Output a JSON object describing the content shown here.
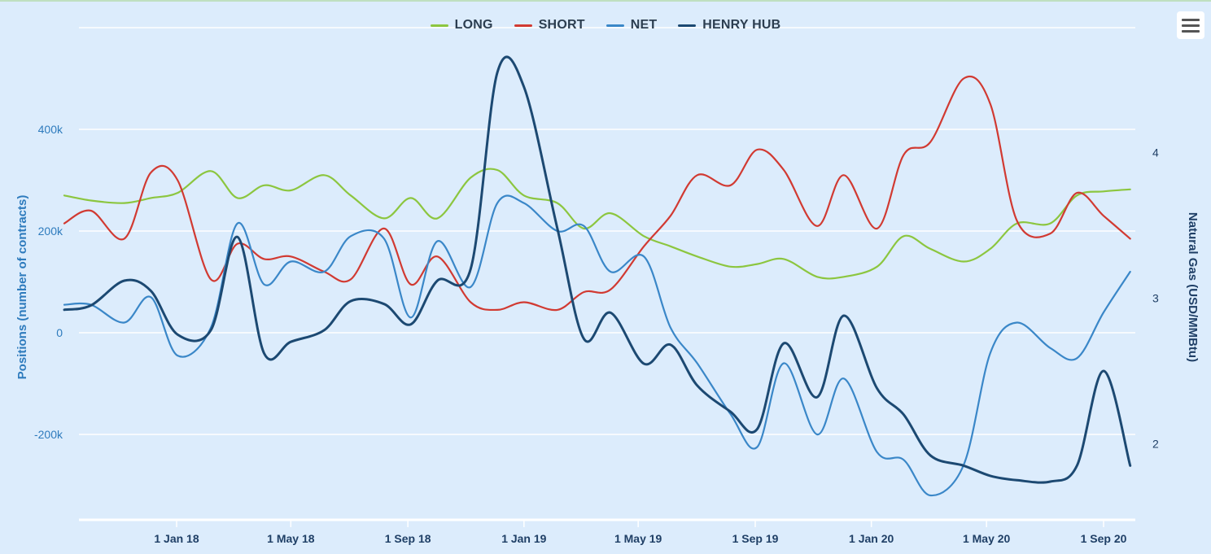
{
  "menu": {
    "icon": "hamburger-menu-icon"
  },
  "chart_data": {
    "type": "line",
    "title": "",
    "x": [
      "2017-09-05",
      "2017-10-03",
      "2017-11-07",
      "2017-12-05",
      "2018-01-02",
      "2018-02-06",
      "2018-03-06",
      "2018-04-03",
      "2018-05-01",
      "2018-06-05",
      "2018-07-03",
      "2018-08-07",
      "2018-09-04",
      "2018-10-02",
      "2018-11-06",
      "2018-12-04",
      "2019-01-01",
      "2019-02-05",
      "2019-03-05",
      "2019-04-02",
      "2019-05-07",
      "2019-06-04",
      "2019-07-02",
      "2019-08-06",
      "2019-09-03",
      "2019-10-01",
      "2019-11-05",
      "2019-12-03",
      "2020-01-07",
      "2020-02-04",
      "2020-03-03",
      "2020-04-07",
      "2020-05-05",
      "2020-06-02",
      "2020-07-07",
      "2020-08-04",
      "2020-09-01",
      "2020-09-29"
    ],
    "series": [
      {
        "name": "LONG",
        "axis": "left",
        "color": "#8cc63f",
        "values": [
          270000,
          260000,
          255000,
          265000,
          275000,
          318000,
          265000,
          290000,
          280000,
          310000,
          270000,
          225000,
          265000,
          225000,
          305000,
          320000,
          270000,
          255000,
          205000,
          235000,
          190000,
          170000,
          150000,
          130000,
          135000,
          145000,
          110000,
          110000,
          130000,
          190000,
          165000,
          140000,
          165000,
          215000,
          215000,
          270000,
          278000,
          282000
        ]
      },
      {
        "name": "SHORT",
        "axis": "left",
        "color": "#d13a32",
        "values": [
          215000,
          240000,
          185000,
          315000,
          300000,
          105000,
          175000,
          145000,
          150000,
          120000,
          105000,
          205000,
          95000,
          150000,
          60000,
          45000,
          60000,
          45000,
          80000,
          85000,
          170000,
          230000,
          310000,
          290000,
          360000,
          320000,
          210000,
          310000,
          205000,
          350000,
          375000,
          500000,
          450000,
          220000,
          195000,
          275000,
          230000,
          185000
        ]
      },
      {
        "name": "NET",
        "axis": "left",
        "color": "#3a87c8",
        "values": [
          55000,
          55000,
          20000,
          70000,
          -45000,
          10000,
          215000,
          95000,
          140000,
          120000,
          190000,
          185000,
          30000,
          180000,
          90000,
          255000,
          255000,
          200000,
          210000,
          120000,
          150000,
          10000,
          -60000,
          -160000,
          -225000,
          -60000,
          -200000,
          -90000,
          -235000,
          -250000,
          -320000,
          -260000,
          -40000,
          20000,
          -30000,
          -50000,
          40000,
          120000
        ]
      },
      {
        "name": "HENRY HUB",
        "axis": "right",
        "color": "#1c4972",
        "values": [
          2.92,
          2.95,
          3.12,
          3.05,
          2.75,
          2.78,
          3.42,
          2.62,
          2.7,
          2.78,
          2.98,
          2.96,
          2.82,
          3.12,
          3.2,
          4.55,
          4.45,
          3.48,
          2.72,
          2.9,
          2.55,
          2.68,
          2.4,
          2.22,
          2.1,
          2.69,
          2.32,
          2.88,
          2.38,
          2.2,
          1.92,
          1.85,
          1.78,
          1.75,
          1.74,
          1.85,
          2.5,
          1.85
        ]
      }
    ],
    "xaxis": {
      "ticks": [
        "1 Jan 18",
        "1 May 18",
        "1 Sep 18",
        "1 Jan 19",
        "1 May 19",
        "1 Sep 19",
        "1 Jan 20",
        "1 May 20",
        "1 Sep 20"
      ],
      "tick_dates": [
        "2018-01-01",
        "2018-05-01",
        "2018-09-01",
        "2019-01-01",
        "2019-05-01",
        "2019-09-01",
        "2020-01-01",
        "2020-05-01",
        "2020-09-01"
      ]
    },
    "yaxis_left": {
      "label": "Positions (number of contracts)",
      "ylim": [
        -370000,
        520000
      ],
      "ticks": [
        -200000,
        0,
        200000,
        400000
      ],
      "tick_labels": [
        "-200k",
        "0",
        "200k",
        "400k"
      ]
    },
    "yaxis_right": {
      "label": "Natural Gas (USD/MMBtu)",
      "ylim": [
        1.5,
        4.6
      ],
      "ticks": [
        2,
        3,
        4
      ],
      "tick_labels": [
        "2",
        "3",
        "4"
      ]
    },
    "legend": "top-center",
    "grid": true
  }
}
